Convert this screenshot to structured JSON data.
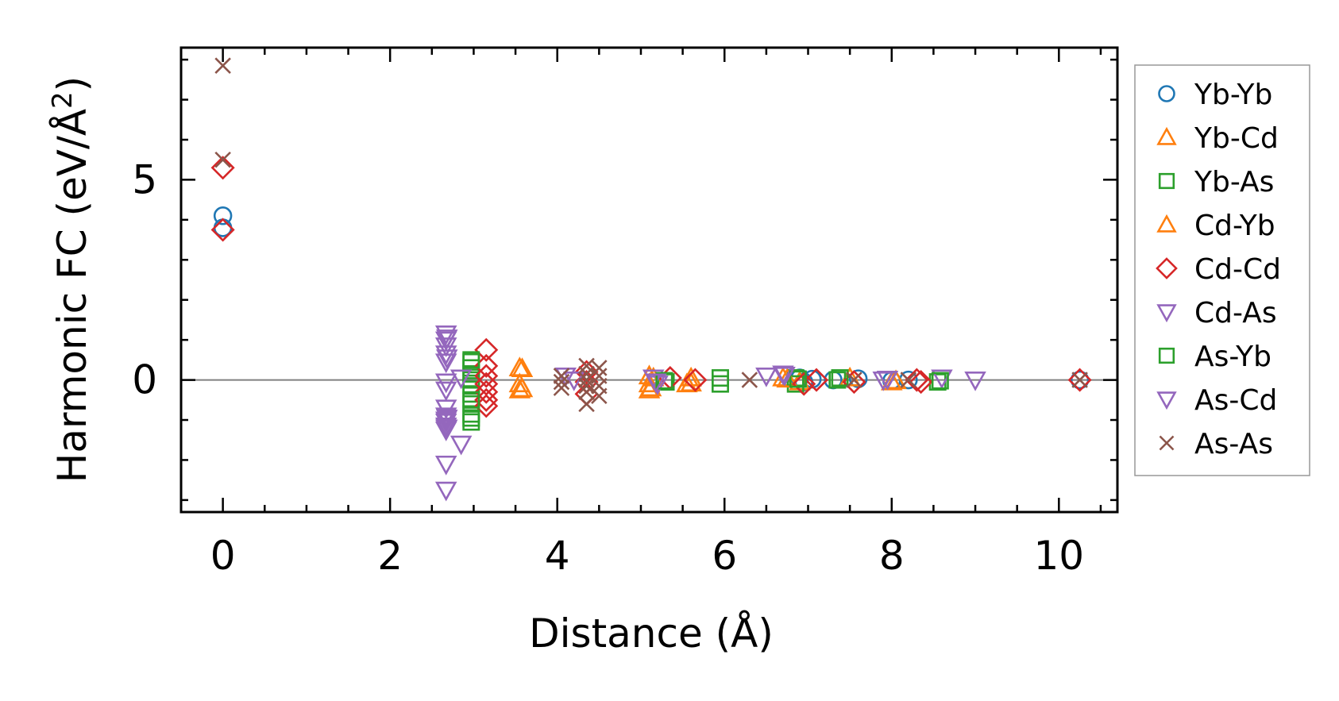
{
  "chart_data": {
    "type": "scatter",
    "xlabel": "Distance (Å)",
    "ylabel": {
      "prefix": "Harmonic FC (eV/Å",
      "superscript": "2",
      "suffix": ")"
    },
    "xlim": [
      -0.5,
      10.7
    ],
    "ylim": [
      -3.3,
      8.3
    ],
    "x_major_ticks": [
      0,
      2,
      4,
      6,
      8,
      10
    ],
    "x_major_tick_labels": [
      "0",
      "2",
      "4",
      "6",
      "8",
      "10"
    ],
    "y_major_ticks": [
      0,
      5
    ],
    "y_major_tick_labels": [
      "0",
      "5"
    ],
    "reference_line_y": 0,
    "grid": false,
    "legend_position": "outside-right",
    "series": [
      {
        "name": "Yb-Yb",
        "marker": "circle",
        "color": "#1f77b4",
        "x": [
          0,
          0,
          6.9,
          6.95,
          7.05,
          7.3,
          7.6,
          8.0,
          8.2,
          10.25
        ],
        "y": [
          4.1,
          3.8,
          0.05,
          -0.05,
          0.02,
          0.0,
          0.03,
          -0.02,
          0.0,
          0.0
        ]
      },
      {
        "name": "Yb-Cd",
        "marker": "triangle-up",
        "color": "#ff7f0e",
        "x": [
          3.55,
          3.55,
          3.55,
          5.1,
          5.1,
          5.1,
          5.15,
          5.55,
          5.6,
          6.7,
          6.9,
          7.5,
          8.0
        ],
        "y": [
          0.3,
          -0.1,
          -0.25,
          0.1,
          -0.1,
          -0.25,
          0.05,
          -0.1,
          0.05,
          0.05,
          -0.05,
          0.05,
          -0.05
        ]
      },
      {
        "name": "Yb-As",
        "marker": "square",
        "color": "#2ca02c",
        "x": [
          2.97,
          2.97,
          2.97,
          2.97,
          2.97,
          2.97,
          2.97,
          2.97,
          2.97,
          5.3,
          5.95,
          5.95,
          6.85,
          6.85,
          7.35,
          8.55
        ],
        "y": [
          0.45,
          0.3,
          0.15,
          0.0,
          -0.15,
          -0.35,
          -0.6,
          -0.85,
          -1.05,
          -0.05,
          0.05,
          -0.1,
          0.05,
          -0.1,
          0.0,
          -0.05
        ]
      },
      {
        "name": "Cd-Yb",
        "marker": "triangle-up",
        "color": "#ff7f0e",
        "x": [
          3.58,
          3.58,
          5.12,
          5.6,
          6.75,
          8.05
        ],
        "y": [
          0.28,
          -0.22,
          -0.2,
          -0.08,
          0.02,
          -0.02
        ]
      },
      {
        "name": "Cd-Cd",
        "marker": "diamond",
        "color": "#d62728",
        "x": [
          0,
          0,
          3.15,
          3.15,
          3.15,
          3.15,
          3.15,
          3.15,
          3.15,
          4.35,
          4.35,
          4.35,
          5.35,
          5.65,
          6.95,
          7.1,
          7.55,
          8.3,
          8.35,
          10.25
        ],
        "y": [
          5.3,
          3.75,
          0.75,
          0.35,
          0.1,
          -0.1,
          -0.3,
          -0.5,
          -0.65,
          0.2,
          -0.05,
          -0.35,
          0.05,
          0.0,
          -0.1,
          0.0,
          -0.05,
          0.0,
          -0.05,
          0.0
        ]
      },
      {
        "name": "Cd-As",
        "marker": "triangle-down",
        "color": "#9467bd",
        "x": [
          2.67,
          2.67,
          2.67,
          2.67,
          2.67,
          2.67,
          2.67,
          2.67,
          2.67,
          2.67,
          2.67,
          2.67,
          2.67,
          2.67,
          2.67,
          2.67,
          2.85,
          2.85,
          4.1,
          4.2,
          5.15,
          5.2,
          6.5,
          6.7,
          7.9,
          8.6,
          9.0
        ],
        "y": [
          1.15,
          1.0,
          0.85,
          0.65,
          0.45,
          -0.05,
          -0.25,
          -0.7,
          -0.9,
          -1.0,
          -1.05,
          -1.15,
          -1.2,
          -1.25,
          -2.1,
          -2.75,
          0.05,
          -1.6,
          0.1,
          0.0,
          0.05,
          -0.1,
          0.1,
          0.15,
          0.0,
          0.05,
          0.0
        ]
      },
      {
        "name": "As-Yb",
        "marker": "square",
        "color": "#2ca02c",
        "x": [
          2.97,
          2.97,
          2.97,
          5.28,
          6.88,
          7.38,
          8.58
        ],
        "y": [
          0.5,
          -0.5,
          -0.95,
          -0.02,
          0.02,
          0.05,
          -0.02
        ]
      },
      {
        "name": "As-Cd",
        "marker": "triangle-down",
        "color": "#9467bd",
        "x": [
          2.68,
          2.68,
          2.68,
          2.68,
          5.18,
          6.72,
          7.95
        ],
        "y": [
          1.05,
          0.55,
          -0.95,
          -1.2,
          -0.05,
          0.12,
          0.02
        ]
      },
      {
        "name": "As-As",
        "marker": "x",
        "color": "#8c564b",
        "x": [
          0,
          0,
          4.05,
          4.05,
          4.05,
          4.35,
          4.35,
          4.35,
          4.35,
          4.35,
          4.35,
          4.5,
          4.5,
          4.5,
          4.5,
          6.3,
          7.55,
          8.2,
          10.25
        ],
        "y": [
          7.85,
          5.5,
          0.1,
          -0.05,
          -0.2,
          0.35,
          0.15,
          0.0,
          -0.15,
          -0.3,
          -0.6,
          0.3,
          0.1,
          -0.15,
          -0.4,
          0.0,
          0.0,
          0.0,
          0.0
        ]
      }
    ]
  }
}
